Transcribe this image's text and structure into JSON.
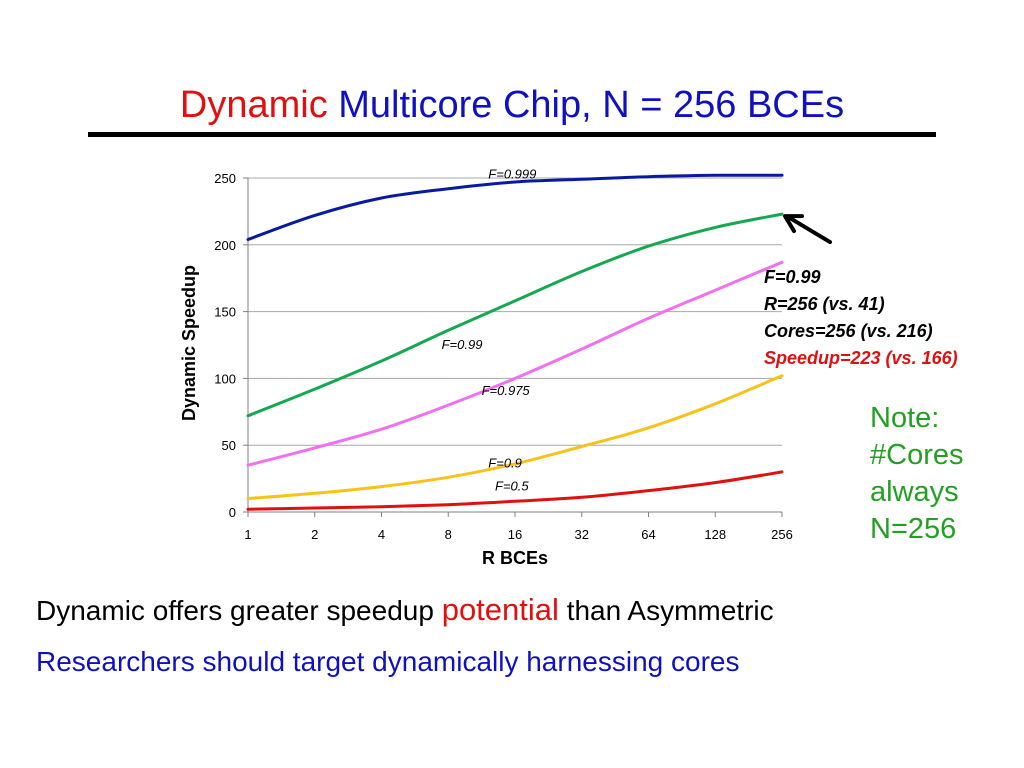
{
  "slide": {
    "title_part1": "Dynamic",
    "title_part2": "Multicore Chip, N = 256 BCEs",
    "title_color1": "#e01010",
    "title_color2": "#1010c0",
    "callout": {
      "lines": [
        "F=0.99",
        "R=256 (vs. 41)",
        "Cores=256 (vs. 216)",
        "Speedup=223 (vs. 166)"
      ],
      "colors": [
        "#000000",
        "#000000",
        "#000000",
        "#e01010"
      ]
    },
    "note": {
      "lines": [
        "Note:",
        "#Cores",
        "always",
        "N=256"
      ],
      "color": "#22a022"
    },
    "bottom1": {
      "part1": "Dynamic offers greater speedup ",
      "part2": "potential",
      "part3": " than Asymmetric",
      "color_main": "#000000",
      "color_accent": "#e01010"
    },
    "bottom2": {
      "text": "Researchers should target dynamically harnessing cores",
      "color": "#1010c0"
    }
  },
  "chart_data": {
    "type": "line",
    "xlabel": "R BCEs",
    "ylabel": "Dynamic Speedup",
    "x_scale": "log2",
    "categories": [
      "1",
      "2",
      "4",
      "8",
      "16",
      "32",
      "64",
      "128",
      "256"
    ],
    "x": [
      1,
      2,
      4,
      8,
      16,
      32,
      64,
      128,
      256
    ],
    "ylim": [
      0,
      250
    ],
    "yticks": [
      0,
      50,
      100,
      150,
      200,
      250
    ],
    "grid": "horizontal",
    "legend": "none",
    "series": [
      {
        "name": "F=0.999",
        "color": "#0a1aa0",
        "values": [
          204,
          222,
          235,
          242,
          247,
          249,
          251,
          252,
          252
        ]
      },
      {
        "name": "F=0.99",
        "color": "#14a850",
        "values": [
          72,
          92,
          113,
          136,
          158,
          180,
          199,
          213,
          223
        ]
      },
      {
        "name": "F=0.975",
        "color": "#f070f0",
        "values": [
          35,
          48,
          62,
          80,
          100,
          122,
          145,
          166,
          187
        ]
      },
      {
        "name": "F=0.9",
        "color": "#f7c21a",
        "values": [
          10,
          14,
          19,
          26,
          36,
          49,
          63,
          81,
          102
        ]
      },
      {
        "name": "F=0.5",
        "color": "#e01010",
        "values": [
          2,
          3,
          4,
          5.5,
          8,
          11,
          16,
          22,
          30
        ]
      }
    ],
    "arrow_target": {
      "x": 256,
      "y": 223
    }
  }
}
